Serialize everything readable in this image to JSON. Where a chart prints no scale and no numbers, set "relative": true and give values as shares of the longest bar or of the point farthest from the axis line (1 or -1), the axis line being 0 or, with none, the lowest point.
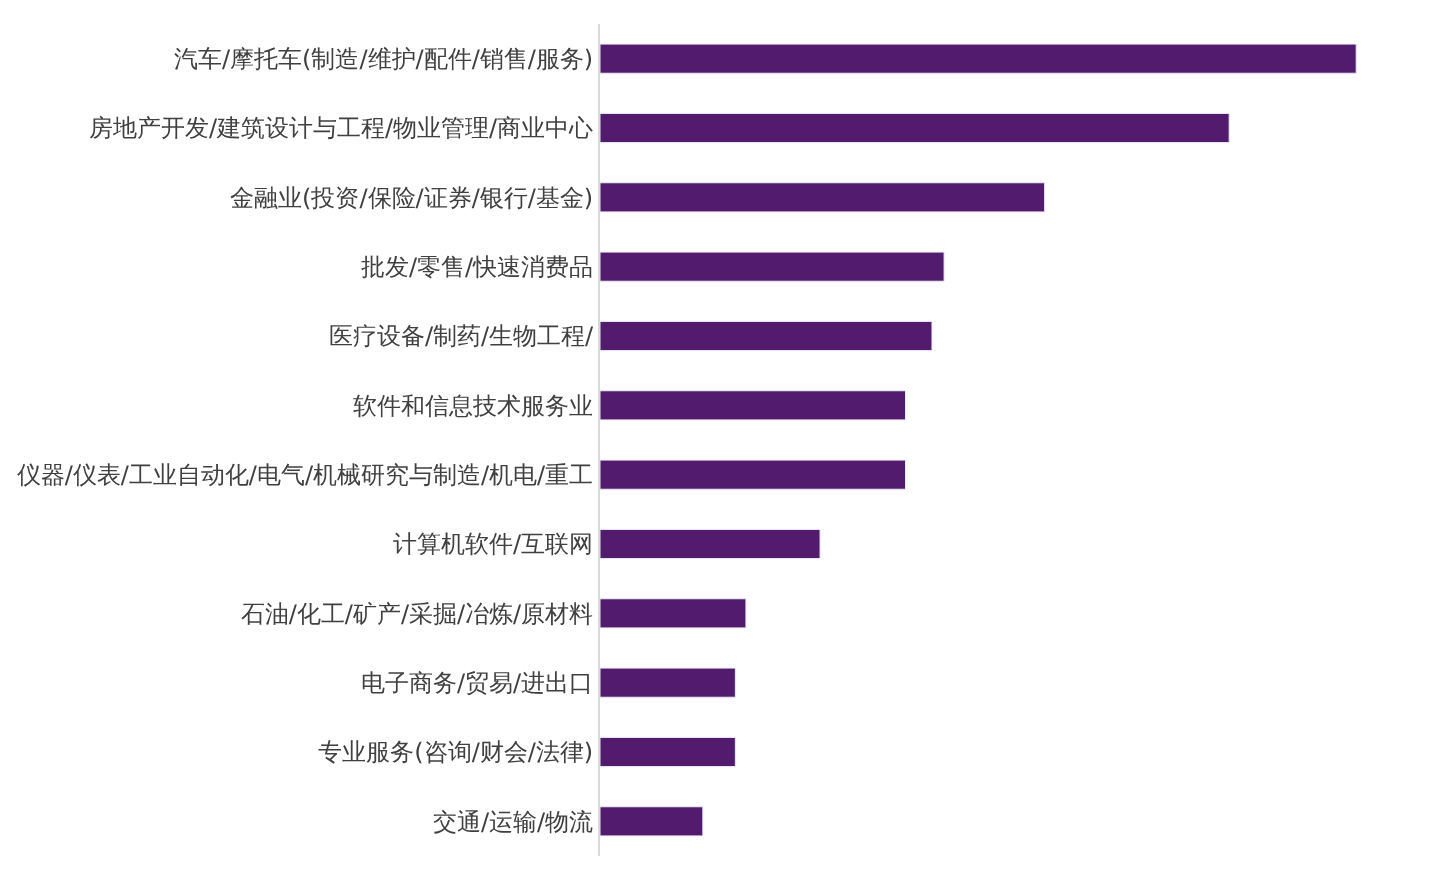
{
  "chart_data": {
    "type": "bar",
    "orientation": "horizontal",
    "relative": true,
    "color": "#531b6d",
    "categories": [
      "汽车/摩托车(制造/维护/配件/销售/服务)",
      "房地产开发/建筑设计与工程/物业管理/商业中心",
      "金融业(投资/保险/证券/银行/基金)",
      "批发/零售/快速消费品",
      "医疗设备/制药/生物工程/",
      "软件和信息技术服务业",
      "仪器/仪表/工业自动化/电气/机械研究与制造/机电/重工",
      "计算机软件/互联网",
      "石油/化工/矿产/采掘/冶炼/原材料",
      "电子商务/贸易/进出口",
      "专业服务(咨询/财会/法律)",
      "交通/运输/物流"
    ],
    "values": [
      1,
      0.832,
      0.588,
      0.455,
      0.439,
      0.404,
      0.404,
      0.291,
      0.193,
      0.179,
      0.179,
      0.136
    ]
  }
}
